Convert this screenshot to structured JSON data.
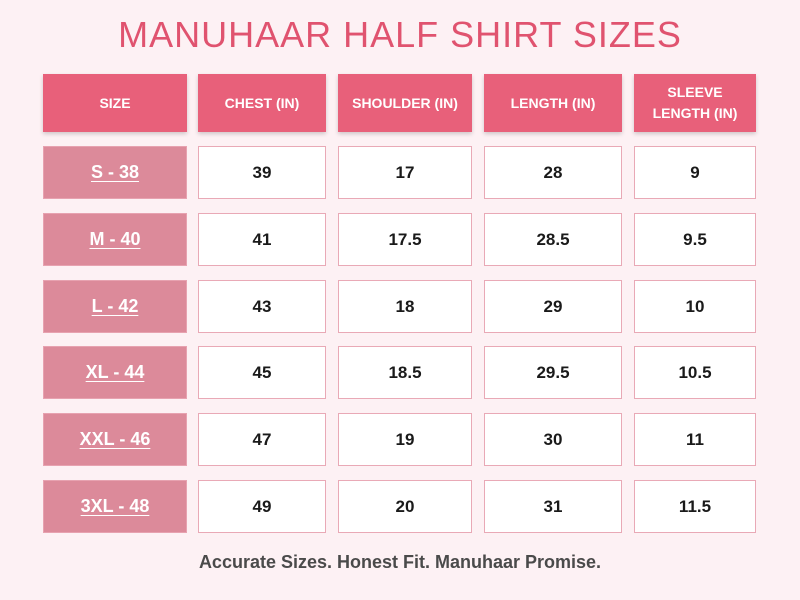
{
  "title": "MANUHAAR HALF SHIRT SIZES",
  "headers": {
    "size": "SIZE",
    "chest": "CHEST (IN)",
    "shoulder": "SHOULDER (IN)",
    "length": "LENGTH (IN)",
    "sleeve_line1": "SLEEVE",
    "sleeve_line2": "LENGTH (IN)"
  },
  "rows": [
    {
      "size": "S - 38",
      "chest": "39",
      "shoulder": "17",
      "length": "28",
      "sleeve": "9"
    },
    {
      "size": "M - 40",
      "chest": "41",
      "shoulder": "17.5",
      "length": "28.5",
      "sleeve": "9.5"
    },
    {
      "size": "L - 42",
      "chest": "43",
      "shoulder": "18",
      "length": "29",
      "sleeve": "10"
    },
    {
      "size": "XL - 44",
      "chest": "45",
      "shoulder": "18.5",
      "length": "29.5",
      "sleeve": "10.5"
    },
    {
      "size": "XXL - 46",
      "chest": "47",
      "shoulder": "19",
      "length": "30",
      "sleeve": "11"
    },
    {
      "size": "3XL - 48",
      "chest": "49",
      "shoulder": "20",
      "length": "31",
      "sleeve": "11.5"
    }
  ],
  "footer": "Accurate Sizes. Honest Fit. Manuhaar Promise.",
  "colors": {
    "title": "#e0536f",
    "header_bg": "#e8607a",
    "size_bg": "#dc8a9a",
    "cell_border": "#e9a9b6",
    "background": "#fdf1f4"
  }
}
